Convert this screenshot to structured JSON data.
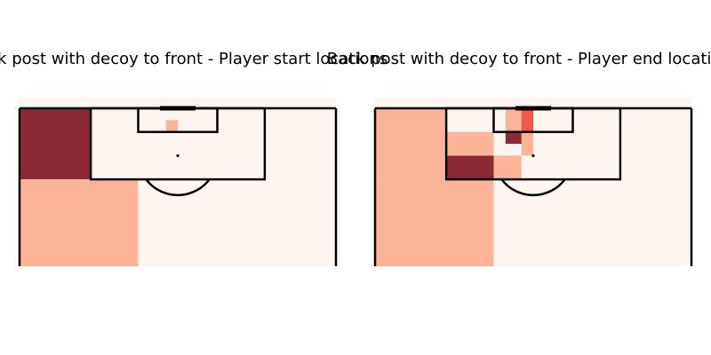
{
  "chart_data": [
    {
      "type": "heatmap",
      "title": "Back post with decoy to front - Player start locations",
      "pitch": "half-pitch, penalty area view",
      "colormap": "Reds",
      "grid": false,
      "bins": [
        {
          "x_range": [
            0,
            18
          ],
          "y_range": [
            0,
            18
          ],
          "value": 0.9
        },
        {
          "x_range": [
            0,
            30
          ],
          "y_range": [
            18,
            40
          ],
          "value": 0.35
        },
        {
          "x_range": [
            37,
            40
          ],
          "y_range": [
            3,
            6
          ],
          "value": 0.35
        }
      ]
    },
    {
      "type": "heatmap",
      "title": "Back post with decoy to front - Player end locations",
      "pitch": "half-pitch, penalty area view",
      "colormap": "Reds",
      "grid": false,
      "bins": [
        {
          "x_range": [
            0,
            18
          ],
          "y_range": [
            0,
            18
          ],
          "value": 0.35
        },
        {
          "x_range": [
            0,
            30
          ],
          "y_range": [
            18,
            40
          ],
          "value": 0.35
        },
        {
          "x_range": [
            18,
            30
          ],
          "y_range": [
            6,
            12
          ],
          "value": 0.35
        },
        {
          "x_range": [
            18,
            30
          ],
          "y_range": [
            12,
            18
          ],
          "value": 0.9
        },
        {
          "x_range": [
            30,
            37
          ],
          "y_range": [
            12,
            18
          ],
          "value": 0.3
        },
        {
          "x_range": [
            33,
            37
          ],
          "y_range": [
            3,
            6
          ],
          "value": 0.25
        },
        {
          "x_range": [
            33,
            40
          ],
          "y_range": [
            6,
            9
          ],
          "value": 0.3
        },
        {
          "x_range": [
            37,
            40
          ],
          "y_range": [
            9,
            12
          ],
          "value": 0.25
        },
        {
          "x_range": [
            37,
            40
          ],
          "y_range": [
            0,
            3
          ],
          "value": 0.3
        },
        {
          "x_range": [
            33,
            37
          ],
          "y_range": [
            0,
            3
          ],
          "value": 0.2
        },
        {
          "x_range": [
            33,
            37
          ],
          "y_range": [
            6,
            9
          ],
          "value": 0.9
        },
        {
          "x_range": [
            37,
            40
          ],
          "y_range": [
            0,
            6
          ],
          "value": 0.6
        }
      ]
    }
  ],
  "colors": {
    "base": "#fff5f0",
    "light": "#fcb499",
    "mid": "#ef5a4b",
    "dark": "#8b2a36",
    "lines": "#000000"
  }
}
